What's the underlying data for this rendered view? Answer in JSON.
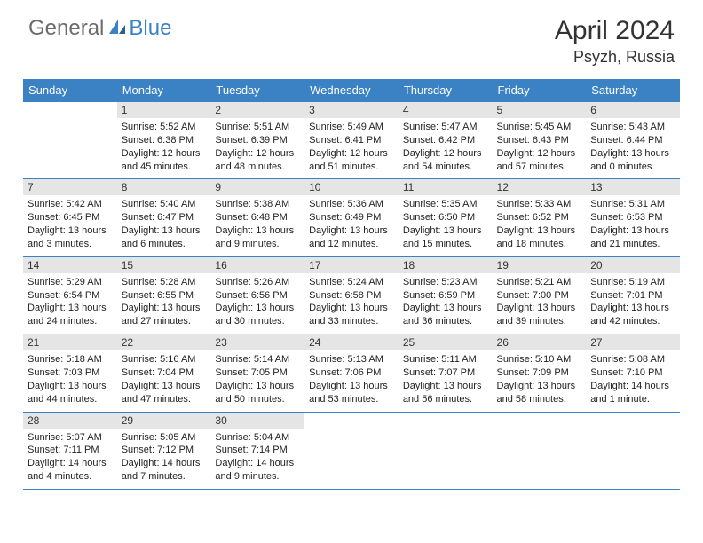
{
  "brand": {
    "part1": "General",
    "part2": "Blue"
  },
  "title": "April 2024",
  "location": "Psyzh, Russia",
  "colors": {
    "accent": "#3b82c4",
    "header_bg": "#3b82c4",
    "header_text": "#ffffff",
    "daynum_bg": "#e5e5e5",
    "text": "#222222",
    "logo_gray": "#6b6b6b",
    "background": "#ffffff"
  },
  "weekdays": [
    "Sunday",
    "Monday",
    "Tuesday",
    "Wednesday",
    "Thursday",
    "Friday",
    "Saturday"
  ],
  "weeks": [
    [
      {
        "n": "",
        "sr": "",
        "ss": "",
        "dl": ""
      },
      {
        "n": "1",
        "sr": "Sunrise: 5:52 AM",
        "ss": "Sunset: 6:38 PM",
        "dl": "Daylight: 12 hours and 45 minutes."
      },
      {
        "n": "2",
        "sr": "Sunrise: 5:51 AM",
        "ss": "Sunset: 6:39 PM",
        "dl": "Daylight: 12 hours and 48 minutes."
      },
      {
        "n": "3",
        "sr": "Sunrise: 5:49 AM",
        "ss": "Sunset: 6:41 PM",
        "dl": "Daylight: 12 hours and 51 minutes."
      },
      {
        "n": "4",
        "sr": "Sunrise: 5:47 AM",
        "ss": "Sunset: 6:42 PM",
        "dl": "Daylight: 12 hours and 54 minutes."
      },
      {
        "n": "5",
        "sr": "Sunrise: 5:45 AM",
        "ss": "Sunset: 6:43 PM",
        "dl": "Daylight: 12 hours and 57 minutes."
      },
      {
        "n": "6",
        "sr": "Sunrise: 5:43 AM",
        "ss": "Sunset: 6:44 PM",
        "dl": "Daylight: 13 hours and 0 minutes."
      }
    ],
    [
      {
        "n": "7",
        "sr": "Sunrise: 5:42 AM",
        "ss": "Sunset: 6:45 PM",
        "dl": "Daylight: 13 hours and 3 minutes."
      },
      {
        "n": "8",
        "sr": "Sunrise: 5:40 AM",
        "ss": "Sunset: 6:47 PM",
        "dl": "Daylight: 13 hours and 6 minutes."
      },
      {
        "n": "9",
        "sr": "Sunrise: 5:38 AM",
        "ss": "Sunset: 6:48 PM",
        "dl": "Daylight: 13 hours and 9 minutes."
      },
      {
        "n": "10",
        "sr": "Sunrise: 5:36 AM",
        "ss": "Sunset: 6:49 PM",
        "dl": "Daylight: 13 hours and 12 minutes."
      },
      {
        "n": "11",
        "sr": "Sunrise: 5:35 AM",
        "ss": "Sunset: 6:50 PM",
        "dl": "Daylight: 13 hours and 15 minutes."
      },
      {
        "n": "12",
        "sr": "Sunrise: 5:33 AM",
        "ss": "Sunset: 6:52 PM",
        "dl": "Daylight: 13 hours and 18 minutes."
      },
      {
        "n": "13",
        "sr": "Sunrise: 5:31 AM",
        "ss": "Sunset: 6:53 PM",
        "dl": "Daylight: 13 hours and 21 minutes."
      }
    ],
    [
      {
        "n": "14",
        "sr": "Sunrise: 5:29 AM",
        "ss": "Sunset: 6:54 PM",
        "dl": "Daylight: 13 hours and 24 minutes."
      },
      {
        "n": "15",
        "sr": "Sunrise: 5:28 AM",
        "ss": "Sunset: 6:55 PM",
        "dl": "Daylight: 13 hours and 27 minutes."
      },
      {
        "n": "16",
        "sr": "Sunrise: 5:26 AM",
        "ss": "Sunset: 6:56 PM",
        "dl": "Daylight: 13 hours and 30 minutes."
      },
      {
        "n": "17",
        "sr": "Sunrise: 5:24 AM",
        "ss": "Sunset: 6:58 PM",
        "dl": "Daylight: 13 hours and 33 minutes."
      },
      {
        "n": "18",
        "sr": "Sunrise: 5:23 AM",
        "ss": "Sunset: 6:59 PM",
        "dl": "Daylight: 13 hours and 36 minutes."
      },
      {
        "n": "19",
        "sr": "Sunrise: 5:21 AM",
        "ss": "Sunset: 7:00 PM",
        "dl": "Daylight: 13 hours and 39 minutes."
      },
      {
        "n": "20",
        "sr": "Sunrise: 5:19 AM",
        "ss": "Sunset: 7:01 PM",
        "dl": "Daylight: 13 hours and 42 minutes."
      }
    ],
    [
      {
        "n": "21",
        "sr": "Sunrise: 5:18 AM",
        "ss": "Sunset: 7:03 PM",
        "dl": "Daylight: 13 hours and 44 minutes."
      },
      {
        "n": "22",
        "sr": "Sunrise: 5:16 AM",
        "ss": "Sunset: 7:04 PM",
        "dl": "Daylight: 13 hours and 47 minutes."
      },
      {
        "n": "23",
        "sr": "Sunrise: 5:14 AM",
        "ss": "Sunset: 7:05 PM",
        "dl": "Daylight: 13 hours and 50 minutes."
      },
      {
        "n": "24",
        "sr": "Sunrise: 5:13 AM",
        "ss": "Sunset: 7:06 PM",
        "dl": "Daylight: 13 hours and 53 minutes."
      },
      {
        "n": "25",
        "sr": "Sunrise: 5:11 AM",
        "ss": "Sunset: 7:07 PM",
        "dl": "Daylight: 13 hours and 56 minutes."
      },
      {
        "n": "26",
        "sr": "Sunrise: 5:10 AM",
        "ss": "Sunset: 7:09 PM",
        "dl": "Daylight: 13 hours and 58 minutes."
      },
      {
        "n": "27",
        "sr": "Sunrise: 5:08 AM",
        "ss": "Sunset: 7:10 PM",
        "dl": "Daylight: 14 hours and 1 minute."
      }
    ],
    [
      {
        "n": "28",
        "sr": "Sunrise: 5:07 AM",
        "ss": "Sunset: 7:11 PM",
        "dl": "Daylight: 14 hours and 4 minutes."
      },
      {
        "n": "29",
        "sr": "Sunrise: 5:05 AM",
        "ss": "Sunset: 7:12 PM",
        "dl": "Daylight: 14 hours and 7 minutes."
      },
      {
        "n": "30",
        "sr": "Sunrise: 5:04 AM",
        "ss": "Sunset: 7:14 PM",
        "dl": "Daylight: 14 hours and 9 minutes."
      },
      {
        "n": "",
        "sr": "",
        "ss": "",
        "dl": ""
      },
      {
        "n": "",
        "sr": "",
        "ss": "",
        "dl": ""
      },
      {
        "n": "",
        "sr": "",
        "ss": "",
        "dl": ""
      },
      {
        "n": "",
        "sr": "",
        "ss": "",
        "dl": ""
      }
    ]
  ]
}
